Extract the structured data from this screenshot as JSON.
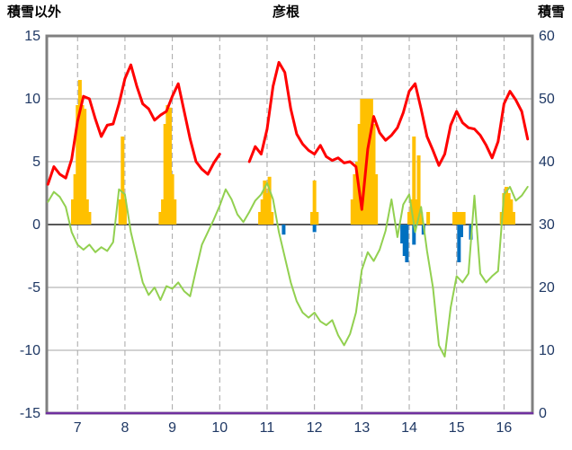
{
  "header": {
    "left_axis_title": "積雪以外",
    "title": "彦根",
    "right_axis_title": "積雪"
  },
  "colors": {
    "red_line": "#ff0000",
    "green_line": "#92d050",
    "orange_bar": "#ffc000",
    "blue_bar": "#0070c0",
    "purple_line": "#7030a0",
    "grid": "#a6a6a6",
    "zero_line": "#404040",
    "frame": "#808080",
    "tick_label": "#1f3864",
    "title_color": "#000000"
  },
  "chart_data": {
    "type": "line",
    "title": "彦根",
    "xlabel": "",
    "ylabel_left": "積雪以外",
    "ylabel_right": "積雪",
    "grid": true,
    "legend": false,
    "left_axis": {
      "min": -15,
      "max": 15,
      "ticks": [
        15,
        10,
        5,
        0,
        -5,
        -10,
        -15
      ]
    },
    "right_axis": {
      "min": 0,
      "max": 60,
      "ticks": [
        60,
        50,
        40,
        30,
        20,
        10,
        0
      ]
    },
    "x_axis": {
      "min": 6.35,
      "max": 16.6,
      "ticks": [
        7,
        8,
        9,
        10,
        11,
        12,
        13,
        14,
        15,
        16
      ]
    },
    "series": [
      {
        "name": "orange-bars",
        "type": "bar",
        "axis": "left",
        "color": "#ffc000",
        "points": [
          [
            6.9,
            2.0
          ],
          [
            6.95,
            4.0
          ],
          [
            7.0,
            9.5
          ],
          [
            7.05,
            11.5
          ],
          [
            7.1,
            9.5
          ],
          [
            7.15,
            9.2
          ],
          [
            7.2,
            2.0
          ],
          [
            7.25,
            1.0
          ],
          [
            7.9,
            2.0
          ],
          [
            7.95,
            7.0
          ],
          [
            8.0,
            2.0
          ],
          [
            8.75,
            1.0
          ],
          [
            8.8,
            2.0
          ],
          [
            8.85,
            8.0
          ],
          [
            8.9,
            9.5
          ],
          [
            8.95,
            9.3
          ],
          [
            9.0,
            4.0
          ],
          [
            9.05,
            2.0
          ],
          [
            10.85,
            1.0
          ],
          [
            10.9,
            2.0
          ],
          [
            10.95,
            3.5
          ],
          [
            11.0,
            2.5
          ],
          [
            11.05,
            3.8
          ],
          [
            11.1,
            1.0
          ],
          [
            11.95,
            1.0
          ],
          [
            12.0,
            3.5
          ],
          [
            12.05,
            1.0
          ],
          [
            12.8,
            2.0
          ],
          [
            12.85,
            4.0
          ],
          [
            12.9,
            5.0
          ],
          [
            12.95,
            8.0
          ],
          [
            13.0,
            10.0
          ],
          [
            13.05,
            10.0
          ],
          [
            13.1,
            10.0
          ],
          [
            13.15,
            10.0
          ],
          [
            13.2,
            10.0
          ],
          [
            13.25,
            8.0
          ],
          [
            13.3,
            4.0
          ],
          [
            14.0,
            1.0
          ],
          [
            14.05,
            2.0
          ],
          [
            14.1,
            7.0
          ],
          [
            14.15,
            2.0
          ],
          [
            14.2,
            5.5
          ],
          [
            14.25,
            1.0
          ],
          [
            14.4,
            1.0
          ],
          [
            14.95,
            1.0
          ],
          [
            15.0,
            1.0
          ],
          [
            15.05,
            1.0
          ],
          [
            15.1,
            1.0
          ],
          [
            15.15,
            1.0
          ],
          [
            15.95,
            1.0
          ],
          [
            16.0,
            2.5
          ],
          [
            16.05,
            3.0
          ],
          [
            16.1,
            2.5
          ],
          [
            16.15,
            2.0
          ],
          [
            16.2,
            1.0
          ]
        ]
      },
      {
        "name": "blue-bars",
        "type": "bar",
        "axis": "left",
        "color": "#0070c0",
        "points": [
          [
            11.35,
            -0.8
          ],
          [
            12.0,
            -0.6
          ],
          [
            13.85,
            -1.5
          ],
          [
            13.9,
            -2.5
          ],
          [
            13.95,
            -3.0
          ],
          [
            14.1,
            -1.6
          ],
          [
            14.3,
            -0.8
          ],
          [
            15.05,
            -3.0
          ],
          [
            15.1,
            -1.0
          ],
          [
            15.3,
            -1.2
          ]
        ]
      },
      {
        "name": "green-line",
        "type": "line",
        "axis": "left",
        "color": "#92d050",
        "width": 2,
        "x_start": 6.375,
        "x_step": 0.125,
        "y": [
          1.8,
          2.6,
          2.2,
          1.4,
          -0.6,
          -1.6,
          -2.0,
          -1.6,
          -2.2,
          -1.8,
          -2.1,
          -1.4,
          2.8,
          2.4,
          -0.6,
          -2.6,
          -4.6,
          -5.6,
          -5.0,
          -6.0,
          -4.9,
          -5.1,
          -4.6,
          -5.3,
          -5.7,
          -3.6,
          -1.6,
          -0.6,
          0.4,
          1.5,
          2.8,
          2.0,
          0.8,
          0.2,
          1.0,
          1.9,
          2.4,
          3.3,
          2.0,
          -0.6,
          -2.6,
          -4.6,
          -6.1,
          -7.0,
          -7.4,
          -7.0,
          -7.7,
          -8.0,
          -7.6,
          -8.8,
          -9.6,
          -8.7,
          -7.0,
          -3.6,
          -2.2,
          -2.9,
          -2.0,
          -0.5,
          2.0,
          -1.0,
          1.6,
          2.4,
          -0.6,
          1.4,
          -2.1,
          -5.0,
          -9.6,
          -10.5,
          -6.6,
          -4.1,
          -4.6,
          -3.9,
          2.3,
          -3.9,
          -4.6,
          -4.1,
          -3.7,
          2.4,
          3.0,
          1.9,
          2.3,
          3.0
        ]
      },
      {
        "name": "red-line",
        "type": "line",
        "axis": "left",
        "color": "#ff0000",
        "width": 3,
        "x_start": 6.375,
        "x_step": 0.125,
        "y": [
          3.2,
          4.6,
          4.0,
          3.7,
          5.2,
          8.2,
          10.2,
          10.0,
          8.4,
          7.0,
          7.9,
          8.0,
          9.6,
          11.6,
          12.7,
          11.0,
          9.6,
          9.2,
          8.3,
          8.7,
          9.0,
          10.2,
          11.2,
          9.0,
          6.8,
          5.0,
          4.4,
          4.0,
          4.9,
          5.6,
          null,
          null,
          null,
          null,
          5.0,
          6.2,
          5.6,
          7.6,
          11.0,
          12.9,
          12.1,
          9.2,
          7.2,
          6.4,
          5.9,
          5.6,
          6.3,
          5.4,
          5.1,
          5.3,
          4.9,
          5.0,
          4.6,
          1.2,
          6.0,
          8.6,
          7.3,
          6.7,
          7.1,
          7.7,
          8.9,
          10.6,
          11.2,
          9.2,
          7.0,
          5.9,
          4.7,
          5.6,
          7.9,
          9.0,
          8.1,
          7.7,
          7.6,
          7.1,
          6.3,
          5.3,
          6.6,
          9.6,
          10.6,
          9.9,
          9.0,
          6.8
        ]
      },
      {
        "name": "purple-line",
        "type": "line",
        "axis": "left",
        "color": "#7030a0",
        "width": 2.5,
        "x": [
          6.35,
          16.6
        ],
        "y": [
          -15,
          -15
        ]
      }
    ]
  }
}
